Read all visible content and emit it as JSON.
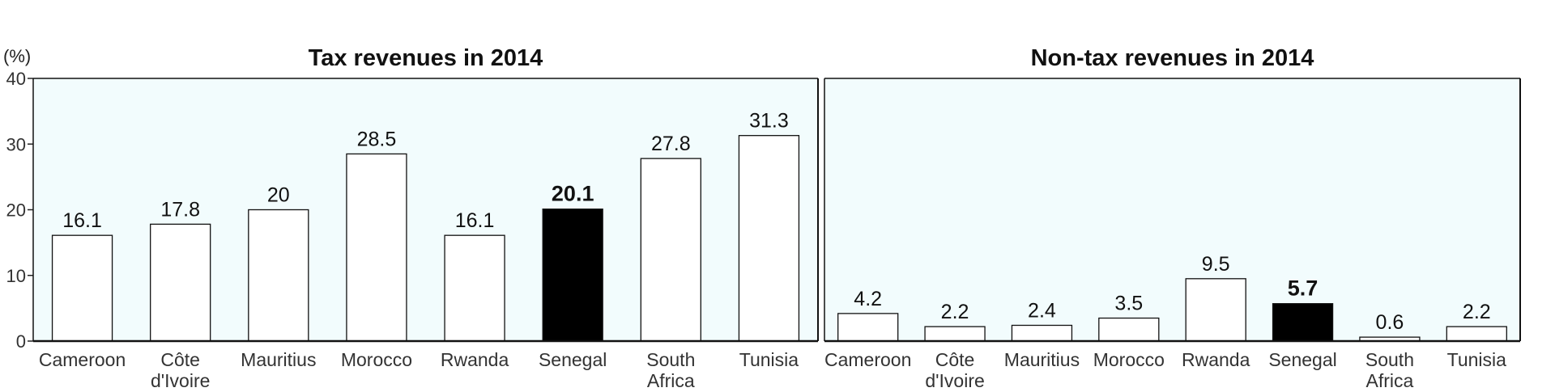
{
  "y_unit": "(%)",
  "highlight_color": "#000000",
  "bar_color": "#ffffff",
  "plot_background": "#f2fcfd",
  "chart_data": [
    {
      "type": "bar",
      "title": "Tax revenues in 2014",
      "categories": [
        "Cameroon",
        "Côte d'Ivoire",
        "Mauritius",
        "Morocco",
        "Rwanda",
        "Senegal",
        "South Africa",
        "Tunisia"
      ],
      "category_label_lines": [
        [
          "Cameroon"
        ],
        [
          "Côte",
          "d'Ivoire"
        ],
        [
          "Mauritius"
        ],
        [
          "Morocco"
        ],
        [
          "Rwanda"
        ],
        [
          "Senegal"
        ],
        [
          "South",
          "Africa"
        ],
        [
          "Tunisia"
        ]
      ],
      "values": [
        16.1,
        17.8,
        20,
        28.5,
        16.1,
        20.1,
        27.8,
        31.3
      ],
      "value_labels": [
        "16.1",
        "17.8",
        "20",
        "28.5",
        "16.1",
        "20.1",
        "27.8",
        "31.3"
      ],
      "highlight": "Senegal",
      "ylim": [
        0,
        40
      ],
      "yticks": [
        "0",
        "10",
        "20",
        "30",
        "40"
      ],
      "show_y_axis": true,
      "grid": false
    },
    {
      "type": "bar",
      "title": "Non-tax revenues in 2014",
      "categories": [
        "Cameroon",
        "Côte d'Ivoire",
        "Mauritius",
        "Morocco",
        "Rwanda",
        "Senegal",
        "South Africa",
        "Tunisia"
      ],
      "category_label_lines": [
        [
          "Cameroon"
        ],
        [
          "Côte",
          "d'Ivoire"
        ],
        [
          "Mauritius"
        ],
        [
          "Morocco"
        ],
        [
          "Rwanda"
        ],
        [
          "Senegal"
        ],
        [
          "South",
          "Africa"
        ],
        [
          "Tunisia"
        ]
      ],
      "values": [
        4.2,
        2.2,
        2.4,
        3.5,
        9.5,
        5.7,
        0.6,
        2.2
      ],
      "value_labels": [
        "4.2",
        "2.2",
        "2.4",
        "3.5",
        "9.5",
        "5.7",
        "0.6",
        "2.2"
      ],
      "highlight": "Senegal",
      "ylim": [
        0,
        40
      ],
      "yticks": [],
      "show_y_axis": false,
      "grid": false
    }
  ]
}
